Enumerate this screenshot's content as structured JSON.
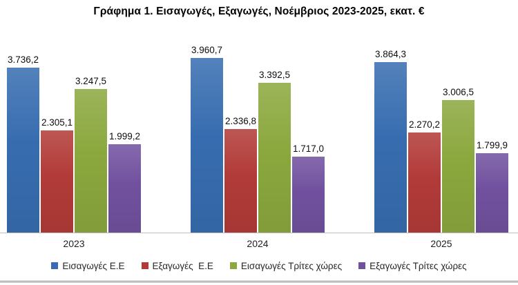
{
  "title": "Γράφημα 1. Εισαγωγές, Εξαγωγές, Νοέμβριος 2023-2025, εκατ. €",
  "chart_data": {
    "type": "bar",
    "title": "Γράφημα 1. Εισαγωγές, Εξαγωγές, Νοέμβριος 2023-2025, εκατ. €",
    "unit": "εκατ. €",
    "categories": [
      "2023",
      "2024",
      "2025"
    ],
    "series": [
      {
        "name": "Εισαγωγές Ε.Ε",
        "color": "#376DB0",
        "values": [
          3736.2,
          3960.7,
          3864.3
        ],
        "labels": [
          "3.736,2",
          "3.960,7",
          "3.864,3"
        ]
      },
      {
        "name": "Εξαγωγές  Ε.Ε",
        "color": "#B23B38",
        "values": [
          2305.1,
          2336.8,
          2270.2
        ],
        "labels": [
          "2.305,1",
          "2.336,8",
          "2.270,2"
        ]
      },
      {
        "name": "Εισαγωγές Τρίτες χώρες",
        "color": "#8BA83E",
        "values": [
          3247.5,
          3392.5,
          3006.5
        ],
        "labels": [
          "3.247,5",
          "3.392,5",
          "3.006,5"
        ]
      },
      {
        "name": "Εξαγωγές Τρίτες χώρες",
        "color": "#71519F",
        "values": [
          1999.2,
          1717.0,
          1799.9
        ],
        "labels": [
          "1.999,2",
          "1.717,0",
          "1.799,9"
        ]
      }
    ],
    "xlabel": "",
    "ylabel": "",
    "ylim": [
      0,
      4400
    ],
    "grid": false,
    "value_labels": true,
    "legend_position": "bottom"
  }
}
